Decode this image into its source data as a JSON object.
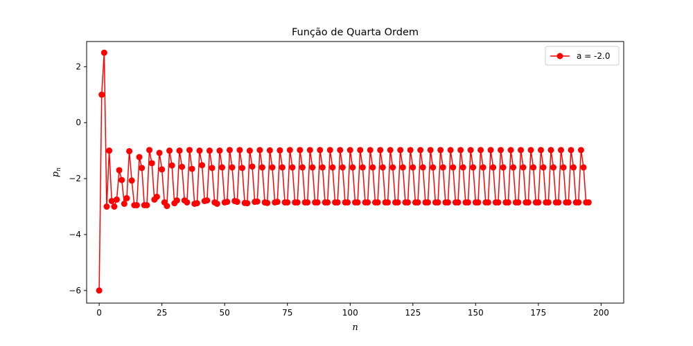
{
  "chart_data": {
    "type": "line",
    "title": "Função de Quarta Ordem",
    "xlabel": "n",
    "ylabel_base": "p",
    "ylabel_sub": "n",
    "xlim": [
      -5,
      209
    ],
    "ylim": [
      -6.45,
      2.9
    ],
    "xticks": [
      0,
      25,
      50,
      75,
      100,
      125,
      150,
      175,
      200
    ],
    "yticks": [
      -6,
      -4,
      -2,
      0,
      2
    ],
    "ytick_labels": [
      "−6",
      "−4",
      "−2",
      "0",
      "2"
    ],
    "grid": false,
    "legend_position": "top-right",
    "series": [
      {
        "name": "a = -2.0",
        "color": "#ff0000",
        "marker": "circle",
        "y": [
          -6.0,
          1.0,
          2.5,
          -3.0,
          -1.0,
          -2.8,
          -3.0,
          -2.75,
          -1.7,
          -2.05,
          -2.9,
          -2.7,
          -1.02,
          -2.07,
          -2.95,
          -2.95,
          -1.23,
          -1.62,
          -2.95,
          -2.95,
          -0.98,
          -1.45,
          -2.75,
          -2.65,
          -1.08,
          -1.67,
          -2.85,
          -2.98,
          -1.0,
          -1.53,
          -2.88,
          -2.78,
          -1.0,
          -1.58,
          -2.78,
          -2.85,
          -0.98,
          -1.65,
          -2.9,
          -2.88,
          -1.0,
          -1.52,
          -2.8,
          -2.78,
          -1.0,
          -1.62,
          -2.85,
          -2.9,
          -1.0,
          -1.6,
          -2.85,
          -2.83,
          -0.98,
          -1.6,
          -2.8,
          -2.83,
          -0.98,
          -1.62,
          -2.87,
          -2.88,
          -1.0,
          -1.57,
          -2.83,
          -2.82,
          -0.98,
          -1.6,
          -2.85,
          -2.87,
          -0.99,
          -1.6,
          -2.85,
          -2.83,
          -0.99,
          -1.6,
          -2.85,
          -2.85,
          -0.98,
          -1.6,
          -2.85,
          -2.85,
          -0.98,
          -1.6,
          -2.85,
          -2.85,
          -0.98,
          -1.6,
          -2.85,
          -2.85,
          -0.98,
          -1.6,
          -2.85,
          -2.85,
          -0.98,
          -1.6,
          -2.85,
          -2.85,
          -0.98,
          -1.6,
          -2.85,
          -2.85,
          -0.98,
          -1.6,
          -2.85,
          -2.85,
          -0.98,
          -1.6,
          -2.85,
          -2.85,
          -0.98,
          -1.6,
          -2.85,
          -2.85,
          -0.98,
          -1.6,
          -2.85,
          -2.85,
          -0.98,
          -1.6,
          -2.85,
          -2.85,
          -0.98,
          -1.6,
          -2.85,
          -2.85,
          -0.98,
          -1.6,
          -2.85,
          -2.85,
          -0.98,
          -1.6,
          -2.85,
          -2.85,
          -0.98,
          -1.6,
          -2.85,
          -2.85,
          -0.98,
          -1.6,
          -2.85,
          -2.85,
          -0.98,
          -1.6,
          -2.85,
          -2.85,
          -0.98,
          -1.6,
          -2.85,
          -2.85,
          -0.98,
          -1.6,
          -2.85,
          -2.85,
          -0.98,
          -1.6,
          -2.85,
          -2.85,
          -0.98,
          -1.6,
          -2.85,
          -2.85,
          -0.98,
          -1.6,
          -2.85,
          -2.85,
          -0.98,
          -1.6,
          -2.85,
          -2.85,
          -0.98,
          -1.6,
          -2.85,
          -2.85,
          -0.98,
          -1.6,
          -2.85,
          -2.85,
          -0.98,
          -1.6,
          -2.85,
          -2.85,
          -0.98,
          -1.6,
          -2.85,
          -2.85,
          -0.98,
          -1.6,
          -2.85,
          -2.85,
          -0.98,
          -1.6,
          -2.85,
          -2.85,
          -0.98,
          -1.6,
          -2.85,
          -2.85
        ]
      }
    ]
  }
}
